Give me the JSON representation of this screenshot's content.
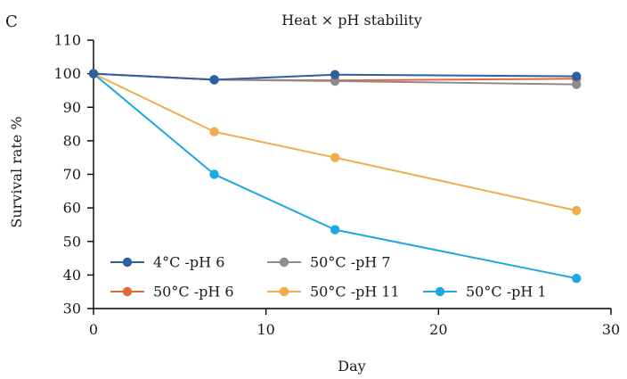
{
  "chart_data": {
    "type": "line",
    "panel_label": "C",
    "title": "Heat × pH stability",
    "xlabel": "Day",
    "ylabel": "Survival rate %",
    "xlim": [
      0,
      30
    ],
    "ylim": [
      30,
      110
    ],
    "xticks": [
      0,
      10,
      20,
      30
    ],
    "yticks": [
      30,
      40,
      50,
      60,
      70,
      80,
      90,
      100,
      110
    ],
    "grid": false,
    "legend_position": "bottom-left",
    "series": [
      {
        "name": "4°C -pH 6",
        "color": "#2e5f9e",
        "x": [
          0,
          7,
          14,
          28
        ],
        "y": [
          100,
          98.2,
          99.7,
          99.2
        ]
      },
      {
        "name": "50°C -pH 7",
        "color": "#8c8c8c",
        "x": [
          0,
          7,
          14,
          28
        ],
        "y": [
          100,
          98.2,
          97.8,
          96.8
        ]
      },
      {
        "name": "50°C -pH 6",
        "color": "#e06a3c",
        "x": [
          0,
          7,
          14,
          28
        ],
        "y": [
          100,
          98.2,
          98.0,
          98.5
        ]
      },
      {
        "name": "50°C -pH 11",
        "color": "#f0ad4e",
        "x": [
          0,
          7,
          14,
          28
        ],
        "y": [
          100,
          82.7,
          75.0,
          59.2
        ]
      },
      {
        "name": "50°C -pH 1",
        "color": "#1ea7e1",
        "x": [
          0,
          7,
          14,
          28
        ],
        "y": [
          100,
          70.0,
          53.5,
          39.0
        ]
      }
    ]
  }
}
